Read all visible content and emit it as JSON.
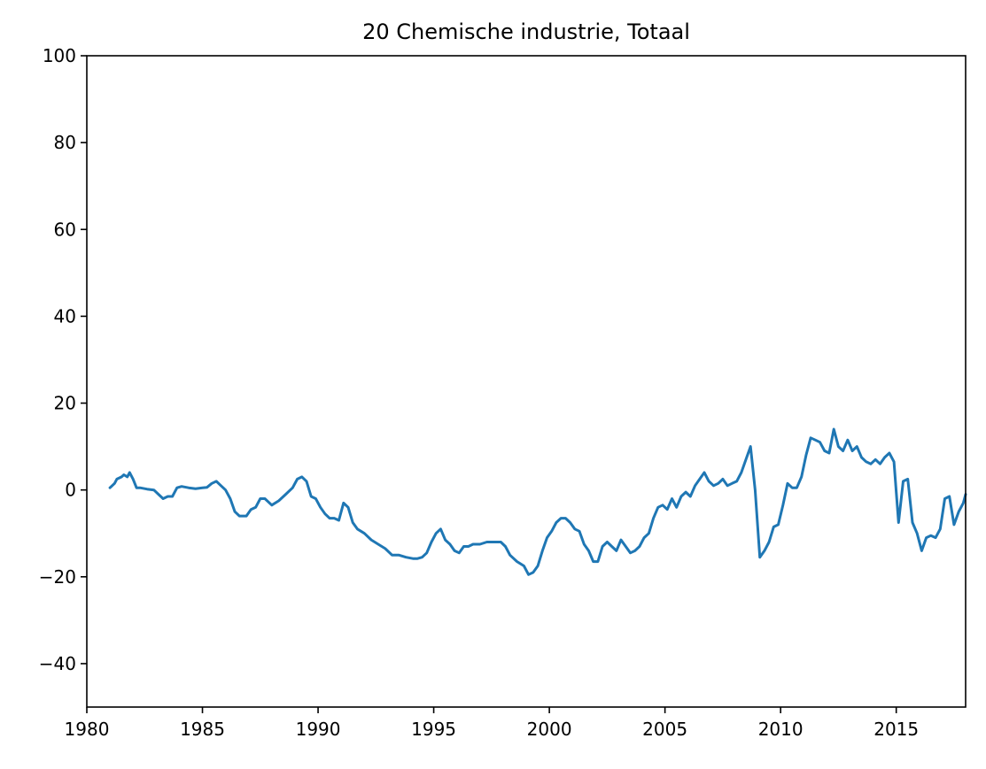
{
  "chart_data": {
    "type": "line",
    "title": "20 Chemische industrie, Totaal",
    "xlabel": "",
    "ylabel": "",
    "xlim": [
      1980,
      2018
    ],
    "ylim": [
      -50,
      100
    ],
    "x_ticks": [
      1980,
      1985,
      1990,
      1995,
      2000,
      2005,
      2010,
      2015
    ],
    "x_tick_labels": [
      "1980",
      "1985",
      "1990",
      "1995",
      "2000",
      "2005",
      "2010",
      "2015"
    ],
    "y_ticks": [
      -40,
      -20,
      0,
      20,
      40,
      60,
      80,
      100
    ],
    "y_tick_labels": [
      "−40",
      "−20",
      "0",
      "20",
      "40",
      "60",
      "80",
      "100"
    ],
    "grid": false,
    "legend": "none",
    "series": [
      {
        "color": "#1f77b4",
        "x": [
          1981.0,
          1981.2,
          1981.3,
          1981.5,
          1981.6,
          1981.75,
          1981.85,
          1982.0,
          1982.15,
          1982.3,
          1982.6,
          1982.9,
          1983.1,
          1983.3,
          1983.5,
          1983.7,
          1983.9,
          1984.1,
          1984.4,
          1984.7,
          1985.0,
          1985.2,
          1985.4,
          1985.6,
          1985.8,
          1986.0,
          1986.2,
          1986.4,
          1986.6,
          1986.9,
          1987.1,
          1987.3,
          1987.5,
          1987.7,
          1988.0,
          1988.3,
          1988.6,
          1988.9,
          1989.1,
          1989.3,
          1989.5,
          1989.7,
          1989.9,
          1990.1,
          1990.3,
          1990.5,
          1990.7,
          1990.9,
          1991.1,
          1991.3,
          1991.5,
          1991.7,
          1992.0,
          1992.3,
          1992.6,
          1992.9,
          1993.2,
          1993.5,
          1993.8,
          1994.1,
          1994.3,
          1994.5,
          1994.7,
          1994.9,
          1995.1,
          1995.3,
          1995.5,
          1995.7,
          1995.9,
          1996.1,
          1996.3,
          1996.5,
          1996.7,
          1997.0,
          1997.3,
          1997.6,
          1997.9,
          1998.1,
          1998.3,
          1998.6,
          1998.9,
          1999.1,
          1999.3,
          1999.5,
          1999.7,
          1999.9,
          2000.1,
          2000.3,
          2000.5,
          2000.7,
          2000.9,
          2001.1,
          2001.3,
          2001.5,
          2001.7,
          2001.9,
          2002.1,
          2002.3,
          2002.5,
          2002.7,
          2002.9,
          2003.1,
          2003.3,
          2003.5,
          2003.7,
          2003.9,
          2004.1,
          2004.3,
          2004.5,
          2004.7,
          2004.9,
          2005.1,
          2005.3,
          2005.5,
          2005.7,
          2005.9,
          2006.1,
          2006.3,
          2006.5,
          2006.7,
          2006.9,
          2007.1,
          2007.3,
          2007.5,
          2007.7,
          2007.9,
          2008.1,
          2008.3,
          2008.5,
          2008.7,
          2008.9,
          2009.1,
          2009.3,
          2009.5,
          2009.7,
          2009.9,
          2010.1,
          2010.3,
          2010.5,
          2010.7,
          2010.9,
          2011.1,
          2011.3,
          2011.5,
          2011.7,
          2011.9,
          2012.1,
          2012.3,
          2012.5,
          2012.7,
          2012.9,
          2013.1,
          2013.3,
          2013.5,
          2013.7,
          2013.9,
          2014.1,
          2014.3,
          2014.5,
          2014.7,
          2014.9,
          2015.1,
          2015.3,
          2015.5,
          2015.7,
          2015.9,
          2016.1,
          2016.3,
          2016.5,
          2016.7,
          2016.9,
          2017.1,
          2017.3,
          2017.5,
          2017.7,
          2017.9,
          2018.0
        ],
        "y": [
          0.5,
          1.5,
          2.5,
          3.0,
          3.5,
          3.0,
          4.0,
          2.5,
          0.5,
          0.5,
          0.2,
          0.0,
          -1.0,
          -2.0,
          -1.5,
          -1.5,
          0.5,
          0.8,
          0.5,
          0.3,
          0.5,
          0.6,
          1.5,
          2.0,
          1.0,
          0.0,
          -2.0,
          -5.0,
          -6.0,
          -6.0,
          -4.5,
          -4.0,
          -2.0,
          -2.0,
          -3.5,
          -2.5,
          -1.0,
          0.5,
          2.5,
          3.0,
          2.0,
          -1.5,
          -2.0,
          -4.0,
          -5.5,
          -6.5,
          -6.5,
          -7.0,
          -3.0,
          -4.0,
          -7.5,
          -9.0,
          -10.0,
          -11.5,
          -12.5,
          -13.5,
          -15.0,
          -15.0,
          -15.5,
          -15.8,
          -15.8,
          -15.5,
          -14.5,
          -12.0,
          -10.0,
          -9.0,
          -11.5,
          -12.5,
          -14.0,
          -14.5,
          -13.0,
          -13.0,
          -12.5,
          -12.5,
          -12.0,
          -12.0,
          -12.0,
          -13.0,
          -15.0,
          -16.5,
          -17.5,
          -19.5,
          -19.0,
          -17.5,
          -14.0,
          -11.0,
          -9.5,
          -7.5,
          -6.5,
          -6.5,
          -7.5,
          -9.0,
          -9.5,
          -12.5,
          -14.0,
          -16.5,
          -16.5,
          -13.0,
          -12.0,
          -13.0,
          -14.0,
          -11.5,
          -13.0,
          -14.5,
          -14.0,
          -13.0,
          -11.0,
          -10.0,
          -6.5,
          -4.0,
          -3.5,
          -4.5,
          -2.0,
          -4.0,
          -1.5,
          -0.5,
          -1.5,
          1.0,
          2.5,
          4.0,
          2.0,
          1.0,
          1.5,
          2.5,
          1.0,
          1.5,
          2.0,
          4.0,
          7.0,
          10.0,
          0.0,
          -15.5,
          -14.0,
          -12.0,
          -8.5,
          -8.0,
          -3.5,
          1.5,
          0.5,
          0.5,
          3.0,
          8.0,
          12.0,
          11.5,
          11.0,
          9.0,
          8.5,
          14.0,
          10.0,
          9.0,
          11.5,
          9.0,
          10.0,
          7.5,
          6.5,
          6.0,
          7.0,
          6.0,
          7.5,
          8.5,
          6.5,
          -7.5,
          2.0,
          2.5,
          -7.5,
          -10.0,
          -14.0,
          -11.0,
          -10.5,
          -11.0,
          -9.0,
          -2.0,
          -1.5,
          -8.0,
          -5.0,
          -3.0,
          -1.0
        ]
      }
    ]
  }
}
